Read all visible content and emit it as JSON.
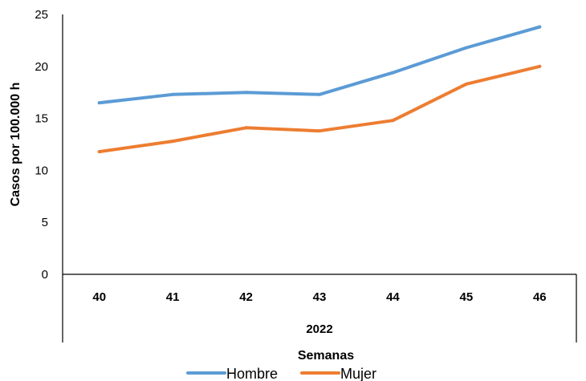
{
  "chart_data": {
    "type": "line",
    "title": "",
    "xlabel": "Semanas",
    "ylabel": "Casos por 100.000 h",
    "group_label": "2022",
    "categories": [
      "40",
      "41",
      "42",
      "43",
      "44",
      "45",
      "46"
    ],
    "ylim": [
      0,
      25
    ],
    "yticks": [
      "0",
      "5",
      "10",
      "15",
      "20",
      "25"
    ],
    "grid": false,
    "legend_position": "bottom",
    "series": [
      {
        "name": "Hombre",
        "color": "#5B9BD5",
        "values": [
          16.5,
          17.3,
          17.5,
          17.3,
          19.4,
          21.8,
          23.8
        ]
      },
      {
        "name": "Mujer",
        "color": "#ED7D31",
        "values": [
          11.8,
          12.8,
          14.1,
          13.8,
          14.8,
          18.3,
          20.0
        ]
      }
    ]
  }
}
